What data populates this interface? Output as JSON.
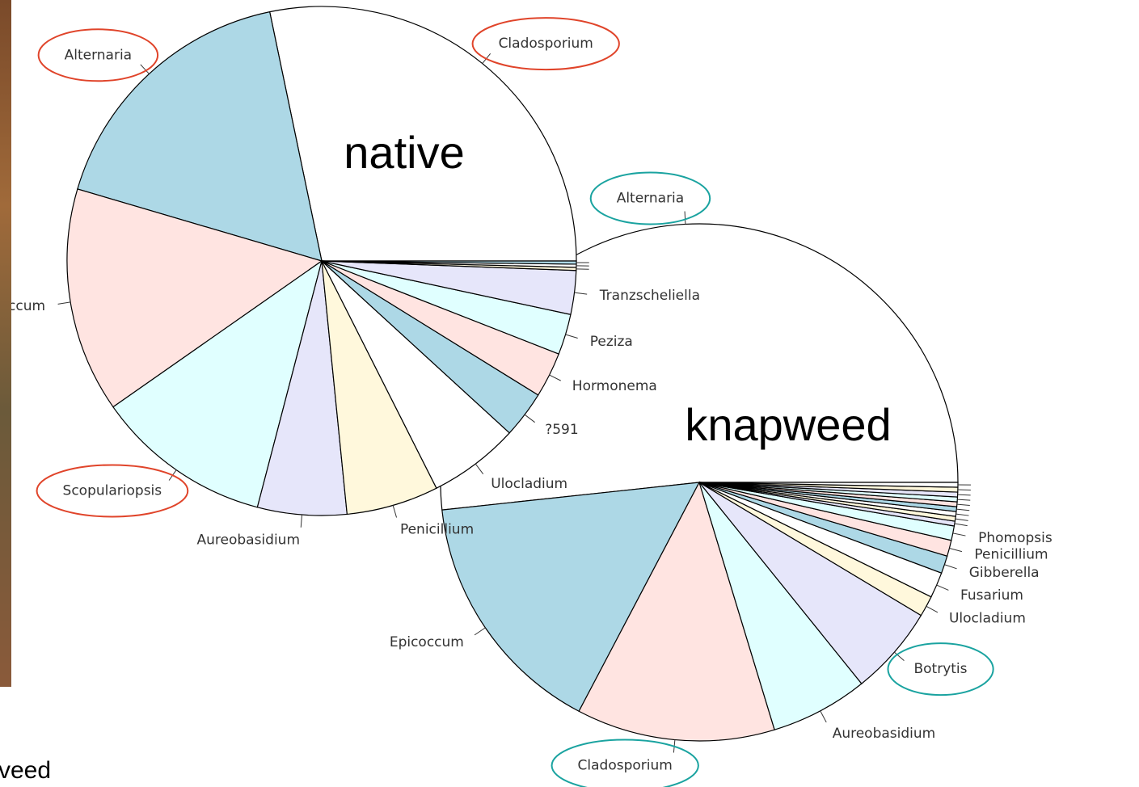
{
  "chart_data": [
    {
      "type": "pie",
      "title": "native",
      "categories": [
        "Cladosporium",
        "Alternaria",
        "Epicoccum",
        "Scopulariopsis",
        "Aureobasidium",
        "Penicillium",
        "Ulocladium",
        "?591",
        "Hormonema",
        "Peziza",
        "Tranzscheliella",
        null,
        null,
        null
      ],
      "values": [
        28.5,
        17.3,
        14.4,
        11.3,
        5.7,
        5.9,
        5.8,
        3.0,
        2.9,
        2.6,
        2.8,
        0.2,
        0.2,
        0.2
      ],
      "colors": [
        "#ffffff",
        "#add8e6",
        "#ffe4e1",
        "#e0ffff",
        "#e6e6fa",
        "#fff8dc"
      ],
      "circled": [
        0,
        1,
        3
      ],
      "circle_color": "#e0442a"
    },
    {
      "type": "pie",
      "title": "knapweed",
      "categories": [
        "Alternaria",
        "Epicoccum",
        "Cladosporium",
        "Aureobasidium",
        "Botrytis",
        "Ulocladium",
        "Fusarium",
        "Gibberella",
        "Penicillium",
        "Phomopsis",
        null,
        null,
        null,
        null,
        null,
        null,
        null,
        null,
        null
      ],
      "values": [
        51.7,
        15.6,
        12.4,
        6.1,
        5.6,
        1.3,
        1.6,
        1.1,
        1.0,
        0.9,
        0.3,
        0.3,
        0.3,
        0.3,
        0.3,
        0.3,
        0.3,
        0.3,
        0.3
      ],
      "colors": [
        "#ffffff",
        "#add8e6",
        "#ffe4e1",
        "#e0ffff",
        "#e6e6fa",
        "#fff8dc"
      ],
      "circled": [
        0,
        2,
        4
      ],
      "circle_color": "#1aa3a0"
    }
  ],
  "footer_text": "veed"
}
